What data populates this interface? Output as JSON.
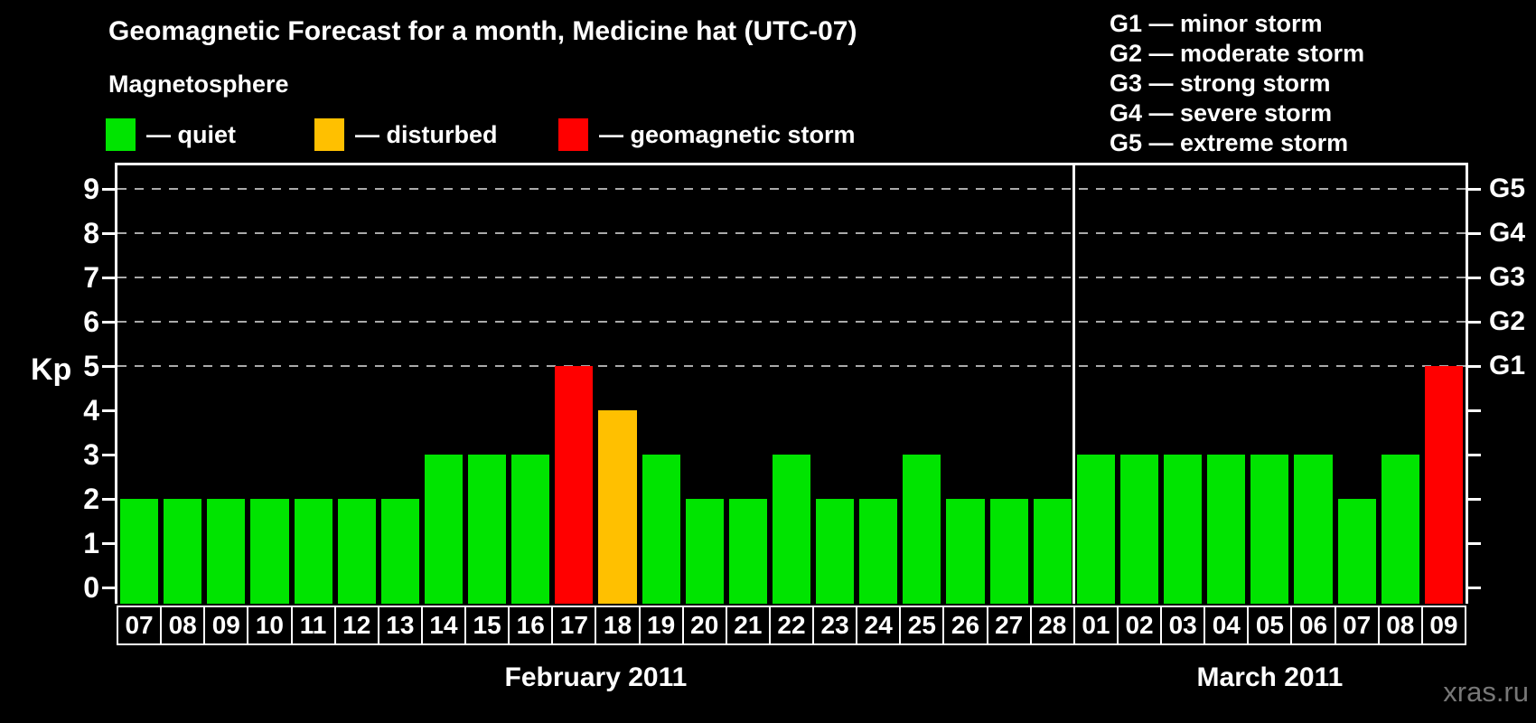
{
  "title": "Geomagnetic Forecast for a month, Medicine hat (UTC-07)",
  "subtitle": "Magnetosphere",
  "legend": {
    "items": [
      {
        "status": "quiet",
        "label": "— quiet",
        "color": "#00e400"
      },
      {
        "status": "disturbed",
        "label": "— disturbed",
        "color": "#ffc000"
      },
      {
        "status": "storm",
        "label": "— geomagnetic storm",
        "color": "#ff0000"
      }
    ]
  },
  "g_scale_legend": {
    "lines": [
      "G1 — minor storm",
      "G2 — moderate storm",
      "G3 — strong storm",
      "G4 — severe storm",
      "G5 — extreme storm"
    ]
  },
  "watermark": "xras.ru",
  "chart_data": {
    "type": "bar",
    "title": "Geomagnetic Forecast for a month, Medicine hat (UTC-07)",
    "ylabel": "Kp",
    "ylim": [
      0,
      9
    ],
    "yticks": [
      0,
      1,
      2,
      3,
      4,
      5,
      6,
      7,
      8,
      9
    ],
    "gridlines_kp": [
      5,
      6,
      7,
      8,
      9
    ],
    "grid": "dashed horizontal at storm levels only",
    "right_axis": [
      {
        "kp": 5,
        "label": "G1"
      },
      {
        "kp": 6,
        "label": "G2"
      },
      {
        "kp": 7,
        "label": "G3"
      },
      {
        "kp": 8,
        "label": "G4"
      },
      {
        "kp": 9,
        "label": "G5"
      }
    ],
    "status_colors": {
      "quiet": "#00e400",
      "disturbed": "#ffc000",
      "storm": "#ff0000"
    },
    "months": [
      {
        "label": "February 2011",
        "days": [
          {
            "date": "07",
            "kp": 2,
            "status": "quiet"
          },
          {
            "date": "08",
            "kp": 2,
            "status": "quiet"
          },
          {
            "date": "09",
            "kp": 2,
            "status": "quiet"
          },
          {
            "date": "10",
            "kp": 2,
            "status": "quiet"
          },
          {
            "date": "11",
            "kp": 2,
            "status": "quiet"
          },
          {
            "date": "12",
            "kp": 2,
            "status": "quiet"
          },
          {
            "date": "13",
            "kp": 2,
            "status": "quiet"
          },
          {
            "date": "14",
            "kp": 3,
            "status": "quiet"
          },
          {
            "date": "15",
            "kp": 3,
            "status": "quiet"
          },
          {
            "date": "16",
            "kp": 3,
            "status": "quiet"
          },
          {
            "date": "17",
            "kp": 5,
            "status": "storm"
          },
          {
            "date": "18",
            "kp": 4,
            "status": "disturbed"
          },
          {
            "date": "19",
            "kp": 3,
            "status": "quiet"
          },
          {
            "date": "20",
            "kp": 2,
            "status": "quiet"
          },
          {
            "date": "21",
            "kp": 2,
            "status": "quiet"
          },
          {
            "date": "22",
            "kp": 3,
            "status": "quiet"
          },
          {
            "date": "23",
            "kp": 2,
            "status": "quiet"
          },
          {
            "date": "24",
            "kp": 2,
            "status": "quiet"
          },
          {
            "date": "25",
            "kp": 3,
            "status": "quiet"
          },
          {
            "date": "26",
            "kp": 2,
            "status": "quiet"
          },
          {
            "date": "27",
            "kp": 2,
            "status": "quiet"
          },
          {
            "date": "28",
            "kp": 2,
            "status": "quiet"
          }
        ]
      },
      {
        "label": "March 2011",
        "days": [
          {
            "date": "01",
            "kp": 3,
            "status": "quiet"
          },
          {
            "date": "02",
            "kp": 3,
            "status": "quiet"
          },
          {
            "date": "03",
            "kp": 3,
            "status": "quiet"
          },
          {
            "date": "04",
            "kp": 3,
            "status": "quiet"
          },
          {
            "date": "05",
            "kp": 3,
            "status": "quiet"
          },
          {
            "date": "06",
            "kp": 3,
            "status": "quiet"
          },
          {
            "date": "07",
            "kp": 2,
            "status": "quiet"
          },
          {
            "date": "08",
            "kp": 3,
            "status": "quiet"
          },
          {
            "date": "09",
            "kp": 5,
            "status": "storm"
          }
        ]
      }
    ]
  }
}
